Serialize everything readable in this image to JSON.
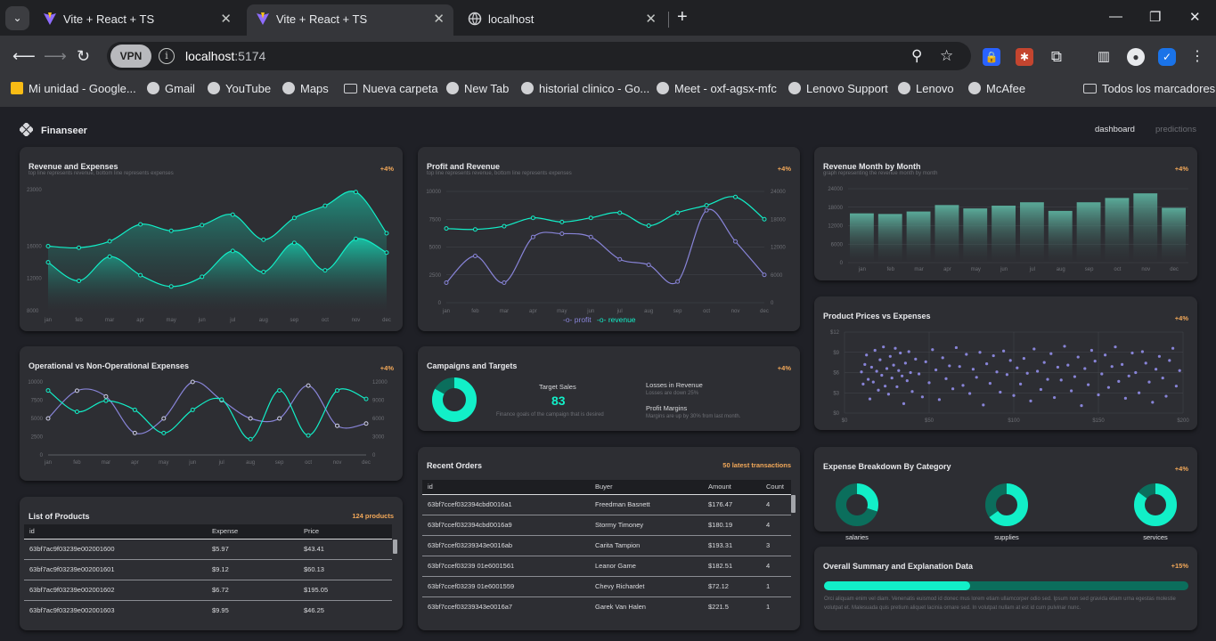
{
  "browser": {
    "tabs": [
      {
        "title": "Vite + React + TS",
        "active": false
      },
      {
        "title": "Vite + React + TS",
        "active": true
      },
      {
        "title": "localhost",
        "active": false
      }
    ],
    "url_host": "localhost",
    "url_port": ":5174",
    "vpn_label": "VPN",
    "bookmarks": [
      "Mi unidad - Google...",
      "Gmail",
      "YouTube",
      "Maps",
      "Nueva carpeta",
      "New Tab",
      "historial clinico - Go...",
      "Meet - oxf-agsx-mfc",
      "Lenovo Support",
      "Lenovo",
      "McAfee",
      "Todos los marcadores"
    ]
  },
  "app": {
    "brand": "Finanseer",
    "nav": {
      "dashboard": "dashboard",
      "predictions": "predictions"
    },
    "accent": "#12efc8",
    "badge_color": "#f2a859",
    "series_purple": "#8884d8"
  },
  "panels": {
    "revenue_expenses": {
      "title": "Revenue and Expenses",
      "subtitle": "top line represents revenue, bottom line represents expenses",
      "badge": "+4%"
    },
    "profit_revenue": {
      "title": "Profit and Revenue",
      "subtitle": "top line represents revenue, bottom line represents expenses",
      "badge": "+4%",
      "legend_profit": "profit",
      "legend_revenue": "revenue"
    },
    "revenue_month": {
      "title": "Revenue Month by Month",
      "subtitle": "graph representing the revenue month by month",
      "badge": "+4%"
    },
    "operational": {
      "title": "Operational vs Non-Operational Expenses",
      "badge": "+4%"
    },
    "campaigns": {
      "title": "Campaigns and Targets",
      "badge": "+4%",
      "target_label": "Target Sales",
      "target_value": "83",
      "target_desc": "Finance goals of the campaign that is desired",
      "losses_title": "Losses in Revenue",
      "losses_desc": "Losses are down 25%",
      "margins_title": "Profit Margins",
      "margins_desc": "Margins are up by 30% from last month."
    },
    "product_prices": {
      "title": "Product Prices vs Expenses",
      "badge": "+4%"
    },
    "products": {
      "title": "List of Products",
      "badge": "124 products",
      "columns": [
        "id",
        "Expense",
        "Price"
      ],
      "rows": [
        [
          "63bf7ac9f03239e002001600",
          "$5.97",
          "$43.41"
        ],
        [
          "63bf7ac9f03239e002001601",
          "$9.12",
          "$60.13"
        ],
        [
          "63bf7ac9f03239e002001602",
          "$6.72",
          "$195.05"
        ],
        [
          "63bf7ac9f03239e002001603",
          "$9.95",
          "$46.25"
        ]
      ]
    },
    "orders": {
      "title": "Recent Orders",
      "badge": "50 latest transactions",
      "columns": [
        "id",
        "Buyer",
        "Amount",
        "Count"
      ],
      "rows": [
        [
          "63bf7ccef032394cbd0016a1",
          "Freedman Basnett",
          "$176.47",
          "4"
        ],
        [
          "63bf7ccef032394cbd0016a9",
          "Stormy Timoney",
          "$180.19",
          "4"
        ],
        [
          "63bf7ccef03239343e0016ab",
          "Carita Tampion",
          "$193.31",
          "3"
        ],
        [
          "63bf7ccef03239 01e6001561",
          "Leanor Game",
          "$182.51",
          "4"
        ],
        [
          "63bf7ccef03239 01e6001559",
          "Chevy Richardet",
          "$72.12",
          "1"
        ],
        [
          "63bf7ccef03239343e0016a7",
          "Garek Van Halen",
          "$221.5",
          "1"
        ]
      ]
    },
    "expense_breakdown": {
      "title": "Expense Breakdown By Category",
      "badge": "+4%",
      "categories": [
        "salaries",
        "supplies",
        "services"
      ]
    },
    "summary": {
      "title": "Overall Summary and Explanation Data",
      "badge": "+15%",
      "progress": 0.4,
      "text": "Orci aliquam enim vel diam. Venenatis euismod id donec mus lorem etiam ullamcorper odio sed. Ipsum non sed gravida etiam urna egestas molestie volutpat et. Malesuada quis pretium aliquet lacinia ornare sed. In volutpat nullam at est id cum pulvinar nunc."
    }
  },
  "chart_data": [
    {
      "id": "revenue_expenses",
      "type": "area",
      "categories": [
        "jan",
        "feb",
        "mar",
        "apr",
        "may",
        "jun",
        "jul",
        "aug",
        "sep",
        "oct",
        "nov",
        "dec"
      ],
      "ylim": [
        8000,
        23000
      ],
      "yticks": [
        "8000",
        "12000",
        "16000",
        "23000"
      ],
      "series": [
        {
          "name": "revenue",
          "values": [
            16000,
            15800,
            16600,
            18700,
            17900,
            18600,
            19900,
            16800,
            19500,
            21000,
            22700,
            17600
          ]
        },
        {
          "name": "expenses",
          "values": [
            14000,
            11700,
            14700,
            12400,
            11000,
            12200,
            15400,
            12800,
            16400,
            13000,
            16900,
            15200
          ]
        }
      ]
    },
    {
      "id": "profit_revenue",
      "type": "line",
      "categories": [
        "jan",
        "feb",
        "mar",
        "apr",
        "may",
        "jun",
        "jul",
        "aug",
        "sep",
        "oct",
        "nov",
        "dec"
      ],
      "ylim": [
        0,
        10000
      ],
      "yticks": [
        "0",
        "2500",
        "5000",
        "7500",
        "10000"
      ],
      "y2lim": [
        0,
        24000
      ],
      "y2ticks": [
        "0",
        "6000",
        "12000",
        "18000",
        "24000"
      ],
      "series": [
        {
          "name": "profit",
          "values": [
            1800,
            4200,
            1800,
            5900,
            6200,
            5900,
            3900,
            3400,
            1900,
            8300,
            5500,
            2500
          ]
        },
        {
          "name": "revenue",
          "values": [
            16000,
            15800,
            16500,
            18300,
            17400,
            18300,
            19400,
            16600,
            19400,
            21000,
            22800,
            18000
          ]
        }
      ]
    },
    {
      "id": "revenue_month",
      "type": "bar",
      "categories": [
        "jan",
        "feb",
        "mar",
        "apr",
        "may",
        "jun",
        "jul",
        "aug",
        "sep",
        "oct",
        "nov",
        "dec"
      ],
      "ylim": [
        0,
        24000
      ],
      "yticks": [
        "0",
        "6000",
        "12000",
        "18000",
        "24000"
      ],
      "values": [
        16000,
        15800,
        16600,
        18700,
        17600,
        18500,
        19600,
        16800,
        19600,
        21000,
        22500,
        17800
      ]
    },
    {
      "id": "operational",
      "type": "line",
      "categories": [
        "jan",
        "feb",
        "mar",
        "apr",
        "may",
        "jun",
        "jul",
        "aug",
        "sep",
        "oct",
        "nov",
        "dec"
      ],
      "ylim": [
        0,
        10000
      ],
      "yticks": [
        "0",
        "2500",
        "5000",
        "7500",
        "10000"
      ],
      "y2lim": [
        0,
        12000
      ],
      "y2ticks": [
        "0",
        "3000",
        "6000",
        "9000",
        "12000"
      ],
      "series": [
        {
          "name": "non-operational",
          "values": [
            5000,
            8800,
            8000,
            3000,
            5000,
            10000,
            7500,
            5000,
            5000,
            9500,
            4000,
            4300
          ]
        },
        {
          "name": "operational",
          "values": [
            10600,
            7100,
            8900,
            7400,
            3600,
            7400,
            9100,
            2600,
            10600,
            3200,
            10600,
            9200
          ]
        }
      ]
    },
    {
      "id": "product_prices",
      "type": "scatter",
      "xlim": [
        0,
        200
      ],
      "ylim": [
        0,
        12
      ],
      "xticks": [
        "$0",
        "$50",
        "$100",
        "$150",
        "$200"
      ],
      "yticks": [
        "$0",
        "$3",
        "$6",
        "$9",
        "$12"
      ],
      "points": [
        [
          10,
          6.1
        ],
        [
          11,
          4.3
        ],
        [
          12,
          7.2
        ],
        [
          13,
          8.6
        ],
        [
          14,
          5.0
        ],
        [
          15,
          2.1
        ],
        [
          16,
          6.8
        ],
        [
          17,
          4.6
        ],
        [
          18,
          9.3
        ],
        [
          19,
          6.2
        ],
        [
          20,
          3.4
        ],
        [
          21,
          7.9
        ],
        [
          22,
          5.6
        ],
        [
          23,
          9.8
        ],
        [
          24,
          4.0
        ],
        [
          25,
          6.6
        ],
        [
          26,
          2.8
        ],
        [
          27,
          8.4
        ],
        [
          28,
          5.2
        ],
        [
          29,
          7.1
        ],
        [
          30,
          9.6
        ],
        [
          31,
          3.9
        ],
        [
          32,
          6.3
        ],
        [
          33,
          8.9
        ],
        [
          34,
          5.5
        ],
        [
          35,
          1.4
        ],
        [
          36,
          7.4
        ],
        [
          37,
          4.8
        ],
        [
          38,
          9.1
        ],
        [
          39,
          6.0
        ],
        [
          40,
          3.2
        ],
        [
          42,
          8.0
        ],
        [
          44,
          5.8
        ],
        [
          46,
          2.4
        ],
        [
          48,
          7.6
        ],
        [
          50,
          4.5
        ],
        [
          52,
          9.4
        ],
        [
          54,
          6.4
        ],
        [
          56,
          2.0
        ],
        [
          58,
          8.2
        ],
        [
          60,
          5.1
        ],
        [
          62,
          7.0
        ],
        [
          64,
          3.6
        ],
        [
          66,
          9.7
        ],
        [
          68,
          6.9
        ],
        [
          70,
          4.1
        ],
        [
          72,
          8.7
        ],
        [
          74,
          2.9
        ],
        [
          76,
          6.5
        ],
        [
          78,
          5.3
        ],
        [
          80,
          9.0
        ],
        [
          82,
          1.2
        ],
        [
          84,
          7.3
        ],
        [
          86,
          4.4
        ],
        [
          88,
          8.5
        ],
        [
          90,
          6.1
        ],
        [
          92,
          3.1
        ],
        [
          94,
          9.2
        ],
        [
          96,
          5.7
        ],
        [
          98,
          7.8
        ],
        [
          100,
          2.6
        ],
        [
          102,
          6.7
        ],
        [
          104,
          4.3
        ],
        [
          106,
          8.1
        ],
        [
          108,
          5.9
        ],
        [
          110,
          1.8
        ],
        [
          112,
          9.5
        ],
        [
          114,
          6.2
        ],
        [
          116,
          3.5
        ],
        [
          118,
          7.5
        ],
        [
          120,
          5.0
        ],
        [
          122,
          8.8
        ],
        [
          124,
          2.3
        ],
        [
          126,
          6.8
        ],
        [
          128,
          4.9
        ],
        [
          130,
          9.9
        ],
        [
          132,
          7.1
        ],
        [
          134,
          3.3
        ],
        [
          136,
          5.4
        ],
        [
          138,
          8.3
        ],
        [
          140,
          1.1
        ],
        [
          142,
          6.6
        ],
        [
          144,
          4.2
        ],
        [
          146,
          9.3
        ],
        [
          148,
          7.7
        ],
        [
          150,
          2.7
        ],
        [
          152,
          5.8
        ],
        [
          154,
          8.6
        ],
        [
          156,
          3.8
        ],
        [
          158,
          6.9
        ],
        [
          160,
          9.8
        ],
        [
          162,
          4.7
        ],
        [
          164,
          7.2
        ],
        [
          166,
          2.2
        ],
        [
          168,
          5.5
        ],
        [
          170,
          8.9
        ],
        [
          172,
          6.0
        ],
        [
          174,
          3.0
        ],
        [
          176,
          9.1
        ],
        [
          178,
          7.4
        ],
        [
          180,
          4.6
        ],
        [
          182,
          1.6
        ],
        [
          184,
          6.5
        ],
        [
          186,
          8.4
        ],
        [
          188,
          5.2
        ],
        [
          190,
          2.5
        ],
        [
          192,
          7.8
        ],
        [
          194,
          9.6
        ],
        [
          196,
          4.0
        ],
        [
          198,
          6.3
        ]
      ]
    },
    {
      "id": "campaign_donut",
      "type": "pie",
      "values": [
        83,
        17
      ]
    },
    {
      "id": "expense_breakdown",
      "type": "pie",
      "categories": [
        "salaries",
        "supplies",
        "services"
      ],
      "shares": [
        0.3,
        0.65,
        0.85
      ]
    }
  ]
}
